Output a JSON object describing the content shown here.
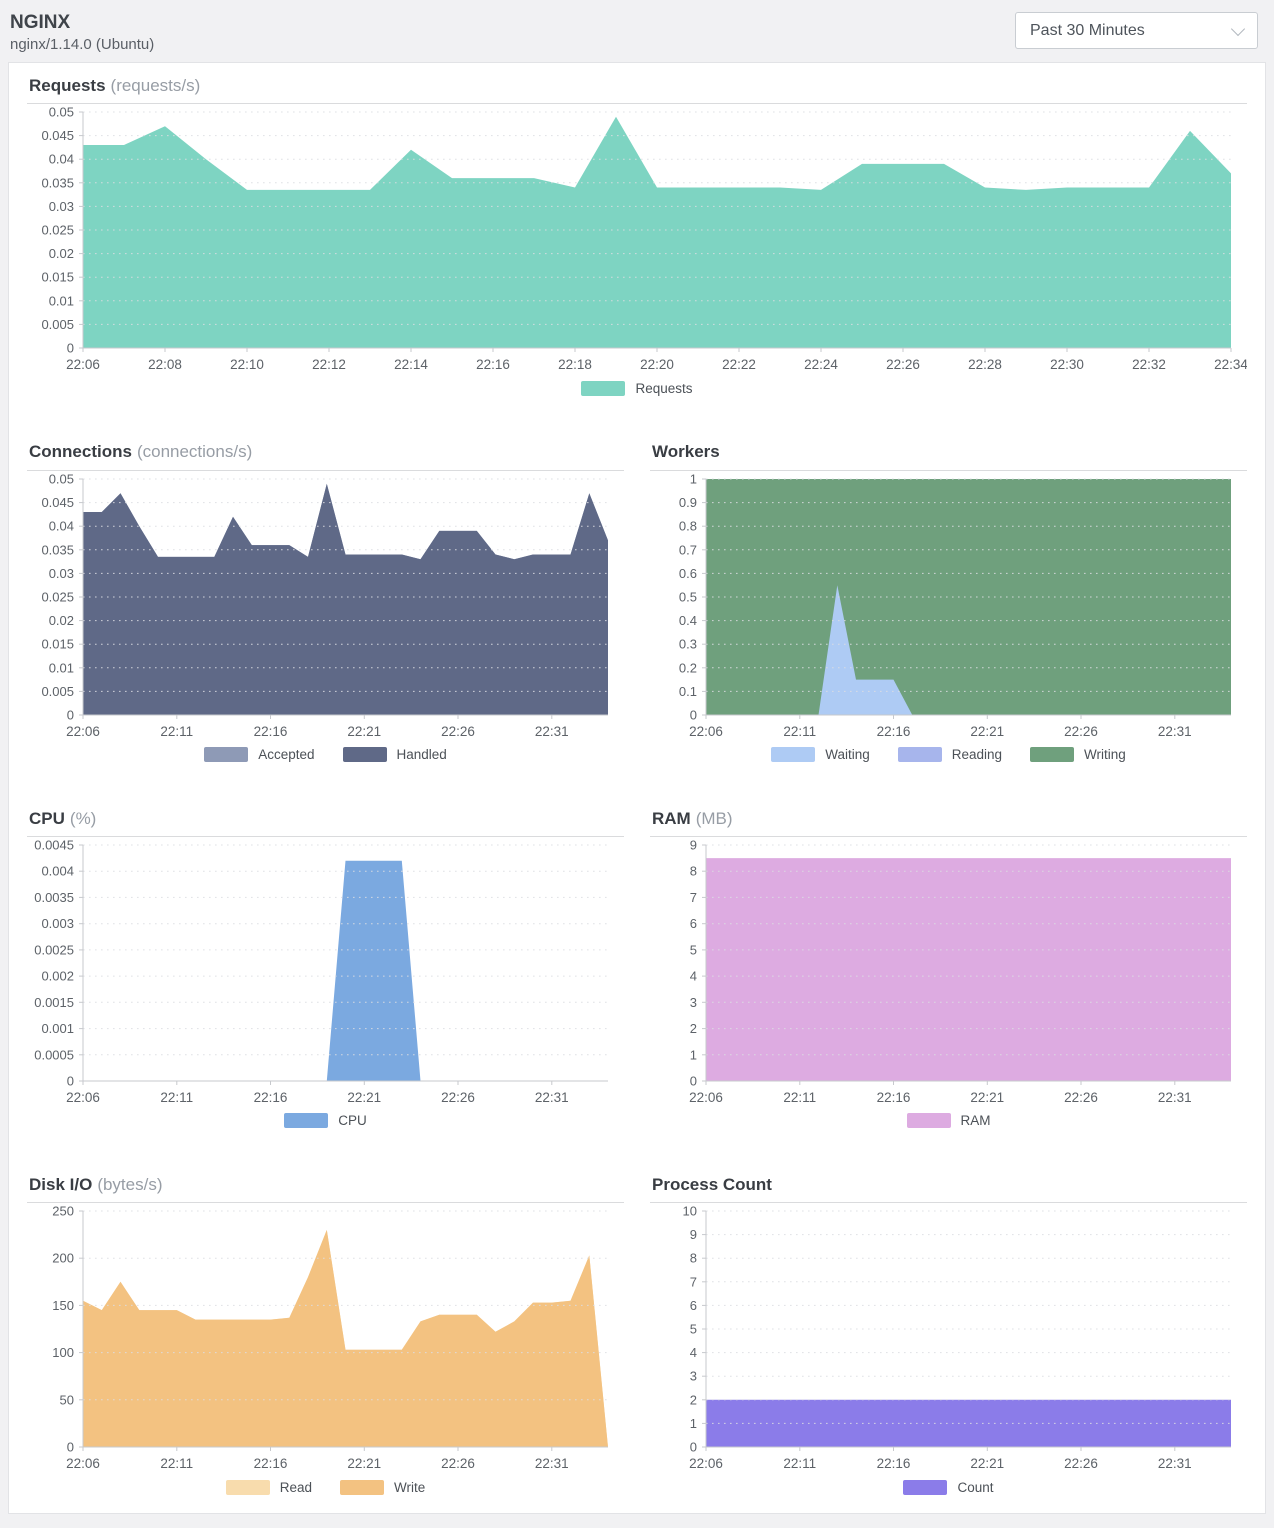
{
  "header": {
    "title": "NGINX",
    "subtitle": "nginx/1.14.0 (Ubuntu)",
    "time_range": {
      "selected": "Past 30 Minutes"
    }
  },
  "chart_data": [
    {
      "id": "requests",
      "type": "area",
      "title": "Requests",
      "unit": "(requests/s)",
      "layout": "full",
      "grid": "dotted",
      "legend_position": "bottom",
      "x": {
        "span_minutes": 28,
        "tick_labels": [
          "22:06",
          "22:08",
          "22:10",
          "22:12",
          "22:14",
          "22:16",
          "22:18",
          "22:20",
          "22:22",
          "22:24",
          "22:26",
          "22:28",
          "22:30",
          "22:32",
          "22:34"
        ],
        "tick_positions": [
          0,
          2,
          4,
          6,
          8,
          10,
          12,
          14,
          16,
          18,
          20,
          22,
          24,
          26,
          28
        ]
      },
      "y": {
        "tick_labels": [
          "0",
          "0.005",
          "0.01",
          "0.015",
          "0.02",
          "0.025",
          "0.03",
          "0.035",
          "0.04",
          "0.045",
          "0.05"
        ]
      },
      "series": [
        {
          "name": "Requests",
          "color": "#7ED4C2",
          "values": [
            0.043,
            0.043,
            0.047,
            0.04,
            0.0335,
            0.0335,
            0.0335,
            0.0335,
            0.042,
            0.036,
            0.036,
            0.036,
            0.034,
            0.049,
            0.034,
            0.034,
            0.034,
            0.034,
            0.0335,
            0.039,
            0.039,
            0.039,
            0.034,
            0.0335,
            0.034,
            0.034,
            0.034,
            0.046,
            0.037
          ]
        }
      ]
    },
    {
      "id": "connections",
      "type": "area",
      "title": "Connections",
      "unit": "(connections/s)",
      "layout": "half",
      "grid": "dotted",
      "legend_position": "bottom",
      "x": {
        "span_minutes": 28,
        "tick_labels": [
          "22:06",
          "22:11",
          "22:16",
          "22:21",
          "22:26",
          "22:31"
        ],
        "tick_positions": [
          0,
          5,
          10,
          15,
          20,
          25
        ]
      },
      "y": {
        "tick_labels": [
          "0",
          "0.005",
          "0.01",
          "0.015",
          "0.02",
          "0.025",
          "0.03",
          "0.035",
          "0.04",
          "0.045",
          "0.05"
        ]
      },
      "series": [
        {
          "name": "Accepted",
          "color": "#8E9AB6",
          "values": [
            0.043,
            0.043,
            0.047,
            0.04,
            0.0335,
            0.0335,
            0.0335,
            0.0335,
            0.042,
            0.036,
            0.036,
            0.036,
            0.0335,
            0.049,
            0.034,
            0.034,
            0.034,
            0.034,
            0.033,
            0.039,
            0.039,
            0.039,
            0.034,
            0.033,
            0.034,
            0.034,
            0.034,
            0.047,
            0.037
          ]
        },
        {
          "name": "Handled",
          "color": "#5F6987",
          "values": [
            0.043,
            0.043,
            0.047,
            0.04,
            0.0335,
            0.0335,
            0.0335,
            0.0335,
            0.042,
            0.036,
            0.036,
            0.036,
            0.0335,
            0.049,
            0.034,
            0.034,
            0.034,
            0.034,
            0.033,
            0.039,
            0.039,
            0.039,
            0.034,
            0.033,
            0.034,
            0.034,
            0.034,
            0.047,
            0.037
          ]
        }
      ]
    },
    {
      "id": "workers",
      "type": "area",
      "title": "Workers",
      "unit": "",
      "layout": "half",
      "grid": "dotted",
      "legend_position": "bottom",
      "draw_order": [
        2,
        1,
        0
      ],
      "x": {
        "span_minutes": 28,
        "tick_labels": [
          "22:06",
          "22:11",
          "22:16",
          "22:21",
          "22:26",
          "22:31"
        ],
        "tick_positions": [
          0,
          5,
          10,
          15,
          20,
          25
        ]
      },
      "y": {
        "tick_labels": [
          "0",
          "0.1",
          "0.2",
          "0.3",
          "0.4",
          "0.5",
          "0.6",
          "0.7",
          "0.8",
          "0.9",
          "1"
        ]
      },
      "series": [
        {
          "name": "Waiting",
          "color": "#AECBF4",
          "values": [
            0,
            0,
            0,
            0,
            0,
            0,
            0,
            0.55,
            0.15,
            0.15,
            0.15,
            0,
            0,
            0,
            0,
            0,
            0,
            0,
            0,
            0,
            0,
            0,
            0,
            0,
            0,
            0,
            0,
            0,
            0
          ]
        },
        {
          "name": "Reading",
          "color": "#A7B5EC",
          "values": 0
        },
        {
          "name": "Writing",
          "color": "#6FA07D",
          "values": 1
        }
      ]
    },
    {
      "id": "cpu",
      "type": "area",
      "title": "CPU",
      "unit": "(%)",
      "layout": "half",
      "grid": "dotted",
      "legend_position": "bottom",
      "x": {
        "span_minutes": 28,
        "tick_labels": [
          "22:06",
          "22:11",
          "22:16",
          "22:21",
          "22:26",
          "22:31"
        ],
        "tick_positions": [
          0,
          5,
          10,
          15,
          20,
          25
        ]
      },
      "y": {
        "tick_labels": [
          "0",
          "0.0005",
          "0.001",
          "0.0015",
          "0.002",
          "0.0025",
          "0.003",
          "0.0035",
          "0.004",
          "0.0045"
        ]
      },
      "series": [
        {
          "name": "CPU",
          "color": "#7BA9E0",
          "values": [
            0,
            0,
            0,
            0,
            0,
            0,
            0,
            0,
            0,
            0,
            0,
            0,
            0,
            0,
            0.0042,
            0.0042,
            0.0042,
            0.0042,
            0,
            0,
            0,
            0,
            0,
            0,
            0,
            0,
            0,
            0,
            0
          ]
        }
      ]
    },
    {
      "id": "ram",
      "type": "area",
      "title": "RAM",
      "unit": "(MB)",
      "layout": "half",
      "grid": "dotted",
      "legend_position": "bottom",
      "x": {
        "span_minutes": 28,
        "tick_labels": [
          "22:06",
          "22:11",
          "22:16",
          "22:21",
          "22:26",
          "22:31"
        ],
        "tick_positions": [
          0,
          5,
          10,
          15,
          20,
          25
        ]
      },
      "y": {
        "tick_labels": [
          "0",
          "1",
          "2",
          "3",
          "4",
          "5",
          "6",
          "7",
          "8",
          "9"
        ]
      },
      "series": [
        {
          "name": "RAM",
          "color": "#DDABE1",
          "values": 8.5
        }
      ]
    },
    {
      "id": "diskio",
      "type": "area",
      "title": "Disk I/O",
      "unit": "(bytes/s)",
      "layout": "half",
      "grid": "dotted",
      "legend_position": "bottom",
      "x": {
        "span_minutes": 28,
        "tick_labels": [
          "22:06",
          "22:11",
          "22:16",
          "22:21",
          "22:26",
          "22:31"
        ],
        "tick_positions": [
          0,
          5,
          10,
          15,
          20,
          25
        ]
      },
      "y": {
        "tick_labels": [
          "0",
          "50",
          "100",
          "150",
          "200",
          "250"
        ]
      },
      "series": [
        {
          "name": "Read",
          "color": "#F8DCAD",
          "values": [
            155,
            145,
            175,
            145,
            145,
            145,
            135,
            135,
            135,
            135,
            135,
            137,
            180,
            230,
            103,
            103,
            103,
            103,
            133,
            140,
            140,
            140,
            122,
            133,
            153,
            153,
            155,
            203,
            0
          ]
        },
        {
          "name": "Write",
          "color": "#F3C281",
          "values": [
            155,
            145,
            175,
            145,
            145,
            145,
            135,
            135,
            135,
            135,
            135,
            137,
            180,
            230,
            103,
            103,
            103,
            103,
            133,
            140,
            140,
            140,
            122,
            133,
            153,
            153,
            155,
            203,
            0
          ]
        }
      ]
    },
    {
      "id": "process_count",
      "type": "area",
      "title": "Process Count",
      "unit": "",
      "layout": "half",
      "grid": "dotted",
      "legend_position": "bottom",
      "x": {
        "span_minutes": 28,
        "tick_labels": [
          "22:06",
          "22:11",
          "22:16",
          "22:21",
          "22:26",
          "22:31"
        ],
        "tick_positions": [
          0,
          5,
          10,
          15,
          20,
          25
        ]
      },
      "y": {
        "tick_labels": [
          "0",
          "1",
          "2",
          "3",
          "4",
          "5",
          "6",
          "7",
          "8",
          "9",
          "10"
        ]
      },
      "series": [
        {
          "name": "Count",
          "color": "#8B7CE9",
          "values": 2
        }
      ]
    }
  ]
}
